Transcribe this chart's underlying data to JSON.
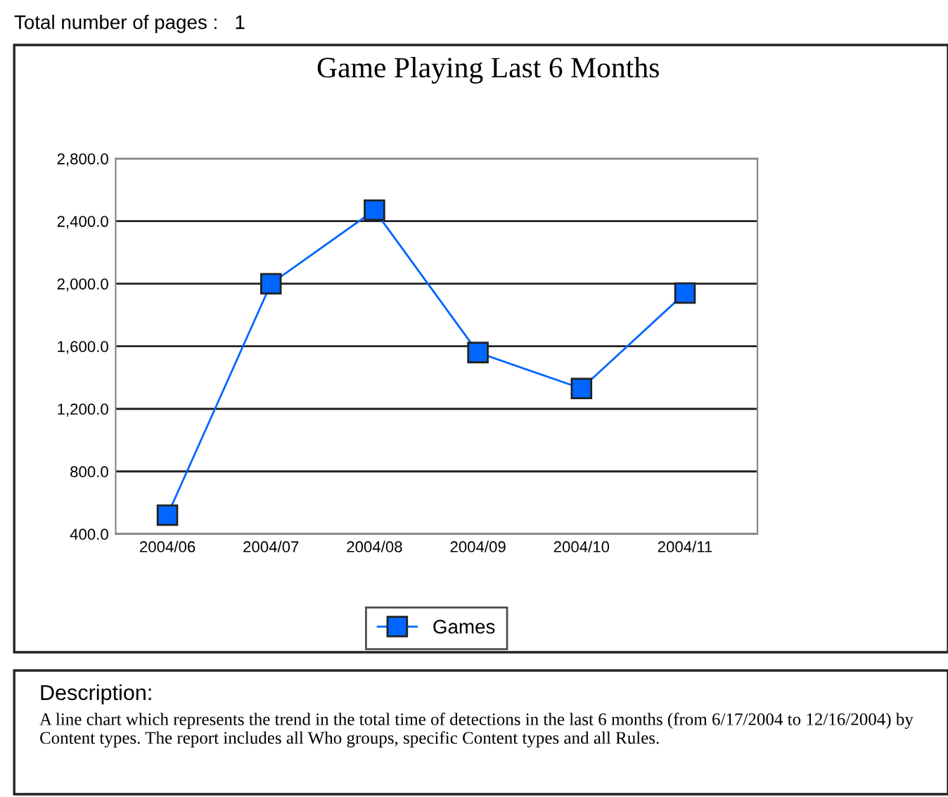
{
  "chart_data": {
    "type": "line",
    "title": "Game Playing Last 6 Months",
    "categories": [
      "2004/06",
      "2004/07",
      "2004/08",
      "2004/09",
      "2004/10",
      "2004/11"
    ],
    "series": [
      {
        "name": "Games",
        "color": "#0066ff",
        "values": [
          520,
          2000,
          2470,
          1560,
          1330,
          1940
        ]
      }
    ],
    "ylim": [
      400,
      2800
    ],
    "yticks": [
      {
        "value": 400,
        "label": "400.0"
      },
      {
        "value": 800,
        "label": "800.0"
      },
      {
        "value": 1200,
        "label": "1,200.0"
      },
      {
        "value": 1600,
        "label": "1,600.0"
      },
      {
        "value": 2000,
        "label": "2,000.0"
      },
      {
        "value": 2400,
        "label": "2,400.0"
      },
      {
        "value": 2800,
        "label": "2,800.0"
      }
    ],
    "grid": "y",
    "legend": "bottom",
    "marker": "square",
    "line_style": "solid",
    "annotations": [
      "Total number of pages :   1",
      "Description:",
      "A line chart which represents the trend in the total time of detections in the last 6 months (from 6/17/2004 to 12/16/2004) by Content types. The report includes all Who groups, specific Content types and all Rules."
    ]
  }
}
